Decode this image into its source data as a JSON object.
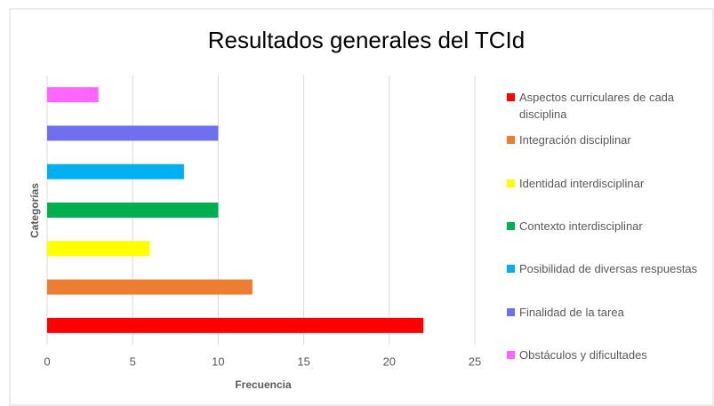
{
  "chart_data": {
    "type": "barh",
    "title": "Resultados generales del TCId",
    "x_label": "Frecuencia",
    "y_label": "Categorías",
    "categories": [
      "Aspectos curriculares de cada disciplina",
      "Integración disciplinar",
      "Identidad interdisciplinar",
      "Contexto interdisciplinar",
      "Posibilidad de diversas respuestas",
      "Finalidad de la tarea",
      "Obstáculos y dificultades"
    ],
    "values": [
      22,
      12,
      6,
      10,
      8,
      10,
      3
    ],
    "colors": [
      "#ff0000",
      "#ed7d31",
      "#ffff00",
      "#00b050",
      "#00b0f0",
      "#7070ef",
      "#ff66ff"
    ],
    "xlim": [
      0,
      25
    ],
    "xticks": [
      0,
      5,
      10,
      15,
      20,
      25
    ],
    "grid": true,
    "legend": "right"
  }
}
